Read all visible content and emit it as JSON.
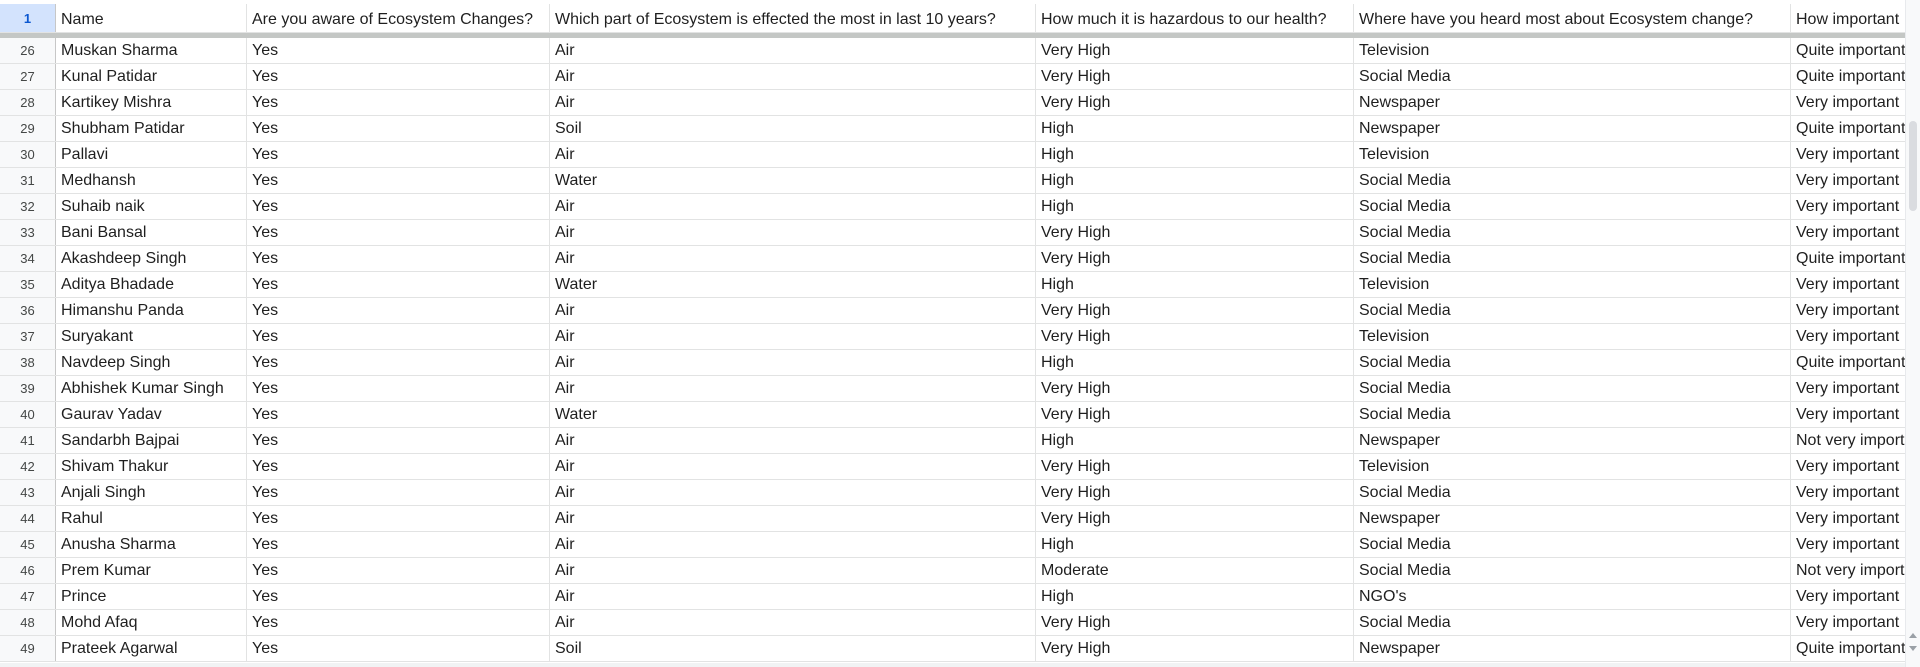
{
  "header_row": {
    "row_number": "1",
    "cells": [
      "Name",
      "Are you aware of Ecosystem Changes?",
      "Which part of Ecosystem is effected the most in last 10 years?",
      "How much it is hazardous to our health?",
      "Where have you heard most about Ecosystem change?",
      "How important"
    ]
  },
  "rows": [
    {
      "num": "26",
      "cells": [
        "Muskan Sharma",
        "Yes",
        "Air",
        "Very High",
        "Television",
        "Quite important"
      ]
    },
    {
      "num": "27",
      "cells": [
        "Kunal Patidar",
        "Yes",
        "Air",
        "Very High",
        "Social Media",
        "Quite important"
      ]
    },
    {
      "num": "28",
      "cells": [
        "Kartikey Mishra",
        "Yes",
        "Air",
        "Very High",
        "Newspaper",
        "Very important"
      ]
    },
    {
      "num": "29",
      "cells": [
        "Shubham Patidar",
        "Yes",
        "Soil",
        "High",
        "Newspaper",
        "Quite important"
      ]
    },
    {
      "num": "30",
      "cells": [
        "Pallavi",
        "Yes",
        "Air",
        "High",
        "Television",
        "Very important"
      ]
    },
    {
      "num": "31",
      "cells": [
        "Medhansh",
        "Yes",
        "Water",
        "High",
        "Social Media",
        "Very important"
      ]
    },
    {
      "num": "32",
      "cells": [
        "Suhaib naik",
        "Yes",
        "Air",
        "High",
        "Social Media",
        "Very important"
      ]
    },
    {
      "num": "33",
      "cells": [
        "Bani Bansal",
        "Yes",
        "Air",
        "Very High",
        "Social Media",
        "Very important"
      ]
    },
    {
      "num": "34",
      "cells": [
        "Akashdeep Singh",
        "Yes",
        "Air",
        "Very High",
        "Social Media",
        "Quite important"
      ]
    },
    {
      "num": "35",
      "cells": [
        "Aditya Bhadade",
        "Yes",
        "Water",
        "High",
        "Television",
        "Very important"
      ]
    },
    {
      "num": "36",
      "cells": [
        "Himanshu Panda",
        "Yes",
        "Air",
        "Very High",
        "Social Media",
        "Very important"
      ]
    },
    {
      "num": "37",
      "cells": [
        "Suryakant",
        "Yes",
        "Air",
        "Very High",
        "Television",
        "Very important"
      ]
    },
    {
      "num": "38",
      "cells": [
        "Navdeep Singh",
        "Yes",
        "Air",
        "High",
        "Social Media",
        "Quite important"
      ]
    },
    {
      "num": "39",
      "cells": [
        "Abhishek Kumar Singh",
        "Yes",
        "Air",
        "Very High",
        "Social Media",
        "Very important"
      ]
    },
    {
      "num": "40",
      "cells": [
        "Gaurav Yadav",
        "Yes",
        "Water",
        "Very High",
        "Social Media",
        "Very important"
      ]
    },
    {
      "num": "41",
      "cells": [
        "Sandarbh Bajpai",
        "Yes",
        "Air",
        "High",
        "Newspaper",
        "Not very import"
      ]
    },
    {
      "num": "42",
      "cells": [
        "Shivam Thakur",
        "Yes",
        "Air",
        "Very High",
        "Television",
        "Very important"
      ]
    },
    {
      "num": "43",
      "cells": [
        "Anjali Singh",
        "Yes",
        "Air",
        "Very High",
        "Social Media",
        "Very important"
      ]
    },
    {
      "num": "44",
      "cells": [
        "Rahul",
        "Yes",
        "Air",
        "Very High",
        "Newspaper",
        "Very important"
      ]
    },
    {
      "num": "45",
      "cells": [
        "Anusha Sharma",
        "Yes",
        "Air",
        "High",
        "Social Media",
        "Very important"
      ]
    },
    {
      "num": "46",
      "cells": [
        "Prem Kumar",
        "Yes",
        "Air",
        "Moderate",
        "Social Media",
        "Not very import"
      ]
    },
    {
      "num": "47",
      "cells": [
        "Prince",
        "Yes",
        "Air",
        "High",
        "NGO's",
        "Very important"
      ]
    },
    {
      "num": "48",
      "cells": [
        "Mohd Afaq",
        "Yes",
        "Air",
        "Very High",
        "Social Media",
        "Very important"
      ]
    },
    {
      "num": "49",
      "cells": [
        "Prateek Agarwal",
        "Yes",
        "Soil",
        "Very High",
        "Newspaper",
        "Quite important"
      ]
    }
  ],
  "colors": {
    "selected_row_header_bg": "#d3e3fd",
    "selected_row_header_text": "#0b57d0",
    "grid_line": "#e2e3e3",
    "freeze_bar": "#c4c7c5"
  }
}
